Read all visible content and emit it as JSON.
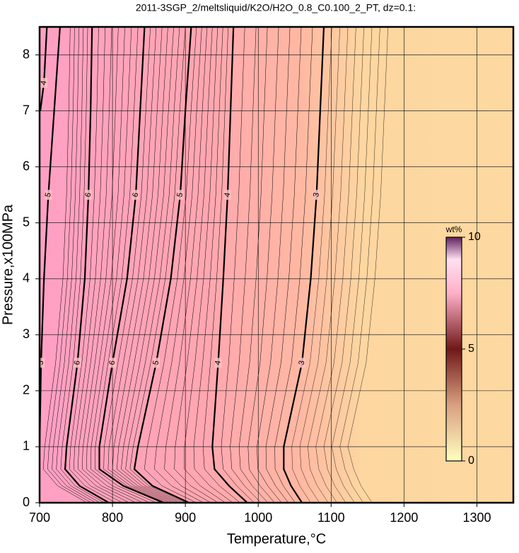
{
  "chart_data": {
    "type": "contour",
    "title": "2011-3SGP_2/meltsliquid/K2O/H2O_0.8_C0.100_2_PT, dz=0.1:",
    "x_label": "Temperature,°C",
    "y_label": "Pressure,x100MPa",
    "xlim": [
      700,
      1350
    ],
    "xticks": [
      700,
      800,
      900,
      1000,
      1100,
      1200,
      1300
    ],
    "ylim": [
      0,
      8.5
    ],
    "yticks": [
      0,
      1,
      2,
      3,
      4,
      5,
      6,
      7,
      8
    ],
    "grid": true,
    "contours": [
      {
        "level": 4,
        "y": [
          8.5,
          7.5,
          7
        ],
        "x": [
          710,
          706,
          701
        ]
      },
      {
        "level": 5,
        "y": [
          8.5,
          7,
          5.5,
          4,
          2.5,
          1
        ],
        "x": [
          728,
          720,
          712,
          706,
          702,
          700
        ]
      },
      {
        "level": 6,
        "y": [
          8.5,
          7,
          5.5,
          4,
          2.5,
          1,
          0.6,
          0.3,
          0
        ],
        "x": [
          772,
          770,
          767,
          762,
          752,
          737,
          735,
          755,
          795
        ]
      },
      {
        "level": 6,
        "y": [
          8.5,
          7,
          5.5,
          4,
          2.5,
          1,
          0.6,
          0.3,
          0
        ],
        "x": [
          844,
          838,
          832,
          820,
          800,
          782,
          782,
          815,
          870
        ]
      },
      {
        "level": 5,
        "y": [
          8.5,
          7,
          5.5,
          4,
          2.5,
          1,
          0.6,
          0.3,
          0
        ],
        "x": [
          908,
          900,
          893,
          880,
          860,
          835,
          830,
          855,
          905
        ]
      },
      {
        "level": 4,
        "y": [
          8.5,
          7,
          5.5,
          4,
          2.5,
          1,
          0.6,
          0.3,
          0
        ],
        "x": [
          966,
          962,
          958,
          952,
          945,
          937,
          940,
          960,
          985
        ]
      },
      {
        "level": 3,
        "y": [
          8.5,
          7,
          5.5,
          4,
          2.5,
          1,
          0.6,
          0.3,
          0
        ],
        "x": [
          1090,
          1085,
          1080,
          1072,
          1060,
          1035,
          1035,
          1045,
          1060
        ]
      }
    ],
    "colorbar": {
      "label": "wt%",
      "lim": [
        0,
        10
      ],
      "ticks": [
        0,
        5,
        10
      ]
    }
  }
}
